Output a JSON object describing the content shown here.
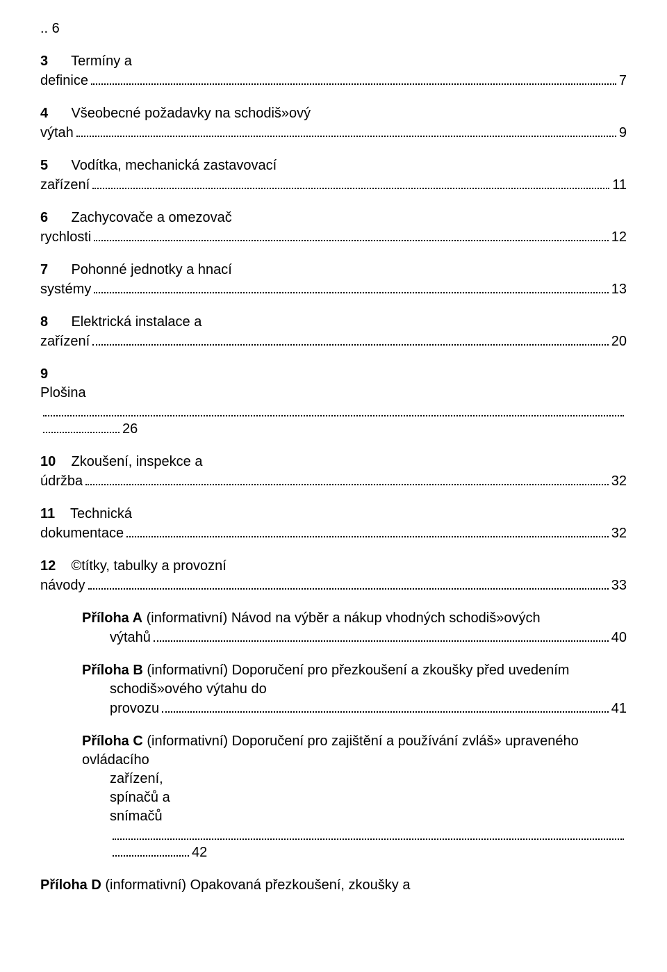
{
  "entries": [
    {
      "prefix": ".. ",
      "num": "6",
      "rest": ""
    },
    {
      "num": "3",
      "gap": "      ",
      "title_l1": "Termíny a",
      "title_l2": "definice",
      "page": "7"
    },
    {
      "num": "4",
      "gap": "      ",
      "title_l1": "Všeobecné požadavky na schodiš»ový",
      "title_l2": "výtah",
      "page": "9"
    },
    {
      "num": "5",
      "gap": "      ",
      "title_l1": "Vodítka, mechanická zastavovací",
      "title_l2": "zařízení",
      "page": "11"
    },
    {
      "num": "6",
      "gap": "      ",
      "title_l1": "Zachycovače a omezovač",
      "title_l2": "rychlosti",
      "page": "12"
    },
    {
      "num": "7",
      "gap": "      ",
      "title_l1": "Pohonné jednotky a hnací",
      "title_l2": "systémy",
      "page": "13"
    },
    {
      "num": "8",
      "gap": "      ",
      "title_l1": "Elektrická instalace a",
      "title_l2": "zařízení",
      "page": "20"
    },
    {
      "num": "9",
      "gap": "",
      "title_l1": "",
      "title_l2": "Plošina",
      "double_leader": true,
      "page": "26"
    },
    {
      "num": "10",
      "gap": "    ",
      "title_l1": "Zkoušení, inspekce a",
      "title_l2": "údržba",
      "page": "32"
    },
    {
      "num": "11",
      "gap": "    ",
      "title_l1": "Technická",
      "title_l2": "dokumentace",
      "page": "32"
    },
    {
      "num": "12",
      "gap": "    ",
      "title_l1": "©títky, tabulky a provozní",
      "title_l2": "návody",
      "page": "33"
    }
  ],
  "annexes": [
    {
      "label_bold": "Příloha A",
      "label_rest": " (informativní) Návod na výběr a nákup vhodných schodiš»ových",
      "cont": "výtahů",
      "page": "40"
    },
    {
      "label_bold": "Příloha B",
      "label_rest": " (informativní) Doporučení pro přezkoušení a zkoušky před uvedením",
      "cont_lines": [
        "schodiš»ového výtahu do",
        "provozu"
      ],
      "page": "41"
    },
    {
      "label_bold": "Příloha C",
      "label_rest": " (informativní) Doporučení pro zajištění a používání zvláš» upraveného ovládacího",
      "cont_lines": [
        "zařízení,",
        "spínačů a",
        "snímačů"
      ],
      "double_leader": true,
      "page": "42"
    }
  ],
  "final": {
    "label_bold": "Příloha D",
    "label_rest": " (informativní) Opakovaná přezkoušení, zkoušky a"
  }
}
